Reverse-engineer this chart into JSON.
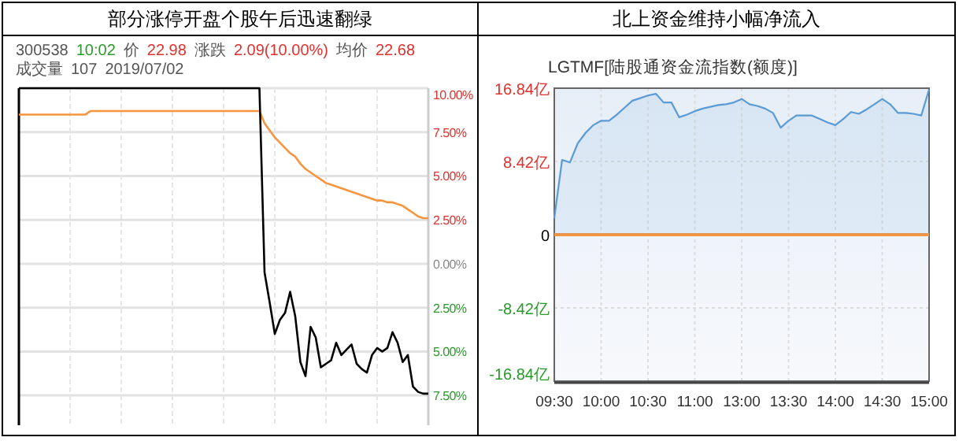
{
  "chart_data": [
    {
      "type": "line",
      "title": "部分涨停开盘个股午后迅速翻绿",
      "annotations": [
        "300538",
        "10:02",
        "价",
        "22.98",
        "涨跌",
        "2.09(10.00%)",
        "均价",
        "22.68",
        "成交量",
        "107",
        "2019/07/02"
      ],
      "categories": [
        null,
        null,
        null,
        null,
        null,
        null,
        null,
        null,
        null,
        null,
        null,
        null,
        null,
        null,
        null,
        null,
        null,
        null,
        null,
        null,
        null,
        null,
        null,
        null,
        null,
        null,
        null,
        null,
        null,
        null,
        null,
        null,
        null,
        null,
        null,
        null,
        null,
        null,
        null,
        null,
        null,
        null,
        null,
        null,
        null,
        null,
        null,
        null,
        null,
        null,
        null,
        null,
        null,
        null,
        null,
        null,
        null,
        null,
        null,
        null,
        null,
        null,
        null,
        null,
        null,
        null,
        null,
        null,
        null,
        null,
        null,
        null,
        null,
        null,
        null,
        null,
        null,
        null,
        null,
        null,
        null
      ],
      "series": [
        {
          "color": "#f7953e",
          "values": [
            8.5,
            8.5,
            8.5,
            8.5,
            8.5,
            8.5,
            8.5,
            8.5,
            8.5,
            8.5,
            8.5,
            8.5,
            8.5,
            8.5,
            8.7,
            8.7,
            8.7,
            8.7,
            8.7,
            8.7,
            8.7,
            8.7,
            8.7,
            8.7,
            8.7,
            8.7,
            8.7,
            8.7,
            8.7,
            8.7,
            8.7,
            8.7,
            8.7,
            8.7,
            8.7,
            8.7,
            8.7,
            8.7,
            8.7,
            8.7,
            8.7,
            8.7,
            8.7,
            8.7,
            8.7,
            8.7,
            8.7,
            8.7,
            8.0,
            7.6,
            7.2,
            6.9,
            6.6,
            6.3,
            6.1,
            5.7,
            5.4,
            5.2,
            5.0,
            4.8,
            4.6,
            4.5,
            4.4,
            4.3,
            4.2,
            4.1,
            4.0,
            3.9,
            3.8,
            3.7,
            3.6,
            3.6,
            3.5,
            3.5,
            3.4,
            3.3,
            3.1,
            2.9,
            2.7,
            2.6,
            2.6
          ]
        },
        {
          "color": "#000000",
          "values": [
            10,
            10,
            10,
            10,
            10,
            10,
            10,
            10,
            10,
            10,
            10,
            10,
            10,
            10,
            10,
            10,
            10,
            10,
            10,
            10,
            10,
            10,
            10,
            10,
            10,
            10,
            10,
            10,
            10,
            10,
            10,
            10,
            10,
            10,
            10,
            10,
            10,
            10,
            10,
            10,
            10,
            10,
            10,
            10,
            10,
            10,
            10,
            10,
            -0.5,
            -2.2,
            -4.0,
            -3.2,
            -2.8,
            -1.6,
            -3.0,
            -5.6,
            -6.4,
            -3.6,
            -4.2,
            -5.9,
            -5.7,
            -5.5,
            -4.5,
            -5.2,
            -4.9,
            -4.6,
            -5.7,
            -6.0,
            -6.2,
            -5.2,
            -4.8,
            -5.0,
            -4.8,
            -3.9,
            -4.5,
            -5.6,
            -5.2,
            -7.0,
            -7.3,
            -7.4,
            -7.4
          ]
        }
      ],
      "ylim": [
        -9.2,
        10
      ],
      "yticks": [
        {
          "value": 10,
          "label": "10.00%"
        },
        {
          "value": 7.5,
          "label": "7.50%"
        },
        {
          "value": 5,
          "label": "5.00%"
        },
        {
          "value": 2.5,
          "label": "2.50%"
        },
        {
          "value": 0,
          "label": "0.00%"
        },
        {
          "value": -2.5,
          "label": "2.50%"
        },
        {
          "value": -5,
          "label": "5.00%"
        },
        {
          "value": -7.5,
          "label": "7.50%"
        }
      ],
      "grid": true,
      "marker": "none"
    },
    {
      "type": "area",
      "title": "北上资金维持小幅净流入",
      "subtitle": "LGTMF[陆股通资金流指数(额度)]",
      "categories": [
        "09:30",
        null,
        null,
        null,
        null,
        null,
        "10:00",
        null,
        null,
        null,
        null,
        null,
        "10:30",
        null,
        null,
        null,
        null,
        null,
        "11:00",
        null,
        null,
        null,
        null,
        null,
        "13:00",
        null,
        null,
        null,
        null,
        null,
        "13:30",
        null,
        null,
        null,
        null,
        null,
        "14:00",
        null,
        null,
        null,
        null,
        null,
        "14:30",
        null,
        null,
        null,
        null,
        null,
        "15:00"
      ],
      "series": [
        {
          "color": "#5b9bd5",
          "values": [
            1.9,
            8.6,
            8.3,
            10.5,
            11.7,
            12.6,
            13.1,
            13.1,
            13.8,
            14.6,
            15.4,
            15.7,
            16.0,
            16.2,
            15.2,
            15.2,
            13.5,
            13.8,
            14.2,
            14.5,
            14.7,
            14.9,
            15.0,
            15.2,
            15.6,
            15.0,
            14.8,
            14.5,
            14.0,
            12.3,
            13.1,
            13.7,
            13.7,
            13.7,
            13.3,
            12.9,
            12.6,
            13.3,
            14.1,
            13.9,
            14.4,
            15.0,
            15.6,
            15.0,
            14.0,
            14.0,
            13.9,
            13.7,
            16.7
          ]
        }
      ],
      "ylim": [
        -16.84,
        16.84
      ],
      "yticks": [
        {
          "value": 16.84,
          "label": "16.84亿"
        },
        {
          "value": 8.42,
          "label": "8.42亿"
        },
        0,
        {
          "value": -8.42,
          "label": "-8.42亿"
        },
        {
          "value": -16.84,
          "label": "-16.84亿"
        }
      ],
      "ref_lines": [
        {
          "axis": "y",
          "value": 0,
          "color": "#f7953e"
        }
      ],
      "grid": true
    }
  ]
}
